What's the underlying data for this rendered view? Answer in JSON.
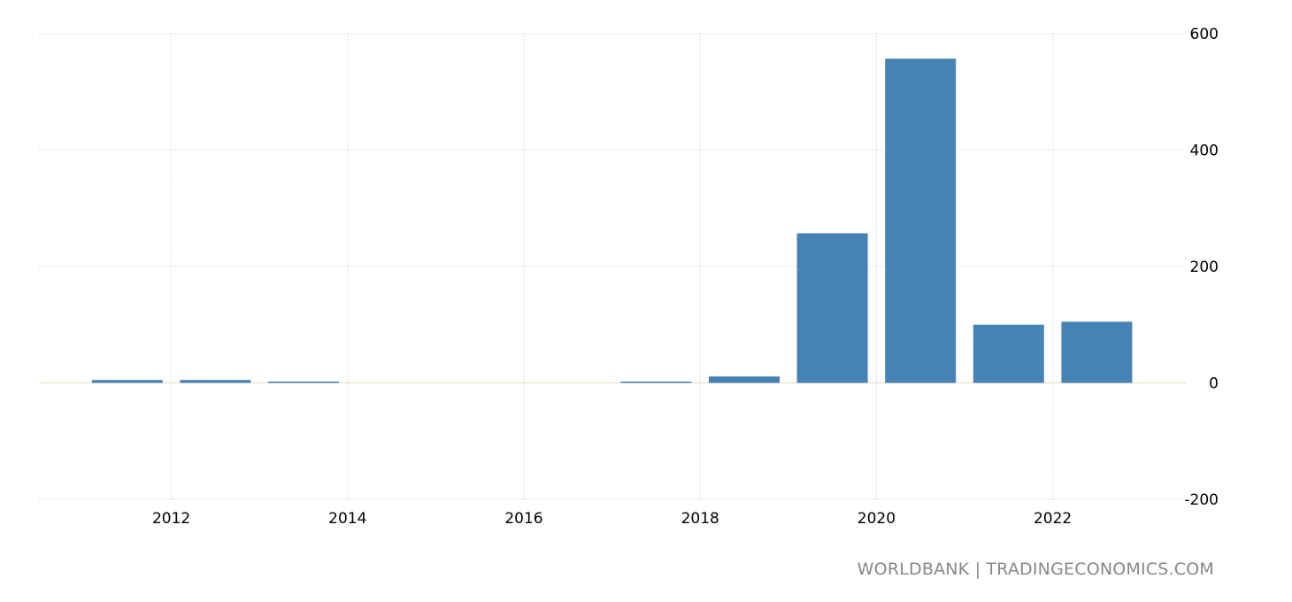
{
  "chart_data": {
    "type": "bar",
    "categories": [
      "2011",
      "2012",
      "2013",
      "2014",
      "2015",
      "2016",
      "2017",
      "2018",
      "2019",
      "2020",
      "2021",
      "2022"
    ],
    "values": [
      5,
      5,
      2,
      0,
      0,
      0,
      2,
      11,
      257,
      557,
      100,
      105
    ],
    "x_tick_labels": [
      "2012",
      "2014",
      "2016",
      "2018",
      "2020",
      "2022"
    ],
    "y_tick_labels": [
      "600",
      "400",
      "200",
      "0",
      "-200"
    ],
    "ylim": [
      -200,
      600
    ],
    "grid": true,
    "bar_color": "#4682b4",
    "y_axis_position": "right"
  },
  "source": "WORLDBANK | TRADINGECONOMICS.COM"
}
